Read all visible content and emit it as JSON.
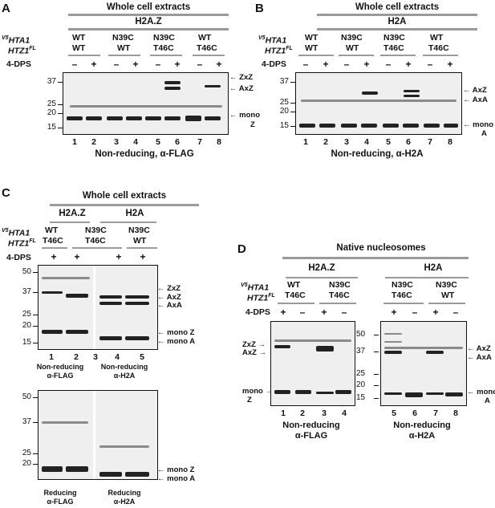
{
  "panels": {
    "A": {
      "label": "A",
      "header": "Whole cell extracts",
      "subheader": "H2A.Z",
      "row_label_1": "HTA1",
      "row_label_1_sup": "V5",
      "row_label_2": "HTZ1",
      "row_label_2_sup": "FL",
      "strain_top": [
        "WT",
        "N39C",
        "N39C",
        "WT"
      ],
      "strain_bottom": [
        "WT",
        "WT",
        "T46C",
        "T46C"
      ],
      "dps_label": "4-DPS",
      "signs": [
        "–",
        "+",
        "–",
        "+",
        "–",
        "+",
        "–",
        "+"
      ],
      "markers": [
        "37",
        "25",
        "20",
        "15"
      ],
      "lanes": [
        "1",
        "2",
        "3",
        "4",
        "5",
        "6",
        "7",
        "8"
      ],
      "caption": "Non-reducing, α-FLAG",
      "arrows": {
        "zxz": "ZxZ",
        "axz": "AxZ",
        "mono": "mono",
        "mono_sub": "Z"
      }
    },
    "B": {
      "label": "B",
      "header": "Whole cell extracts",
      "subheader": "H2A",
      "row_label_1": "HTA1",
      "row_label_1_sup": "V5",
      "row_label_2": "HTZ1",
      "row_label_2_sup": "FL",
      "strain_top": [
        "WT",
        "N39C",
        "N39C",
        "WT"
      ],
      "strain_bottom": [
        "WT",
        "WT",
        "T46C",
        "T46C"
      ],
      "dps_label": "4-DPS",
      "signs": [
        "–",
        "+",
        "–",
        "+",
        "–",
        "+",
        "–",
        "+"
      ],
      "markers": [
        "37",
        "25",
        "20",
        "15"
      ],
      "lanes": [
        "1",
        "2",
        "3",
        "4",
        "5",
        "6",
        "7",
        "8"
      ],
      "caption": "Non-reducing, α-H2A",
      "arrows": {
        "axz": "AxZ",
        "axa": "AxA",
        "mono": "mono",
        "mono_sub": "A"
      }
    },
    "C": {
      "label": "C",
      "header": "Whole cell extracts",
      "sub_left": "H2A.Z",
      "sub_right": "H2A",
      "row_label_1": "HTA1",
      "row_label_1_sup": "V5",
      "row_label_2": "HTZ1",
      "row_label_2_sup": "FL",
      "strain_top": [
        "WT",
        "N39C",
        "N39C"
      ],
      "strain_bottom": [
        "T46C",
        "T46C",
        "WT"
      ],
      "dps_label": "4-DPS",
      "signs": [
        "+",
        "+",
        "+",
        "+"
      ],
      "markers_top": [
        "50",
        "37",
        "25",
        "20",
        "15"
      ],
      "markers_bottom": [
        "50",
        "37",
        "25",
        "20"
      ],
      "lanes": [
        "1",
        "2",
        "3",
        "4",
        "5"
      ],
      "cap_left_1": "Non-reducing",
      "cap_left_2": "α-FLAG",
      "cap_right_1": "Non-reducing",
      "cap_right_2": "α-H2A",
      "bcap_left_1": "Reducing",
      "bcap_left_2": "α-FLAG",
      "bcap_right_1": "Reducing",
      "bcap_right_2": "α-H2A",
      "arrows": {
        "zxz": "ZxZ",
        "axz": "AxZ",
        "axa": "AxA",
        "monoz": "mono Z",
        "monoa": "mono A"
      }
    },
    "D": {
      "label": "D",
      "header": "Native nucleosomes",
      "sub_left": "H2A.Z",
      "sub_right": "H2A",
      "row_label_1": "HTA1",
      "row_label_1_sup": "V5",
      "row_label_2": "HTZ1",
      "row_label_2_sup": "FL",
      "strain_top": [
        "WT",
        "N39C",
        "N39C",
        "N39C"
      ],
      "strain_bottom": [
        "T46C",
        "T46C",
        "T46C",
        "WT"
      ],
      "dps_label": "4-DPS",
      "signs": [
        "+",
        "–",
        "+",
        "–",
        "+",
        "–",
        "+",
        "–"
      ],
      "markers": [
        "50",
        "37",
        "25",
        "20",
        "15"
      ],
      "lanes": [
        "1",
        "2",
        "3",
        "4",
        "5",
        "6",
        "7",
        "8"
      ],
      "cap_left_1": "Non-reducing",
      "cap_left_2": "α-FLAG",
      "cap_right_1": "Non-reducing",
      "cap_right_2": "α-H2A",
      "arrows": {
        "zxz": "ZxZ",
        "axz": "AxZ",
        "mono": "mono",
        "mono_sub": "Z",
        "axz_r": "AxZ",
        "axa_r": "AxA",
        "mono_r": "mono",
        "mono_r_sub": "A"
      }
    }
  }
}
